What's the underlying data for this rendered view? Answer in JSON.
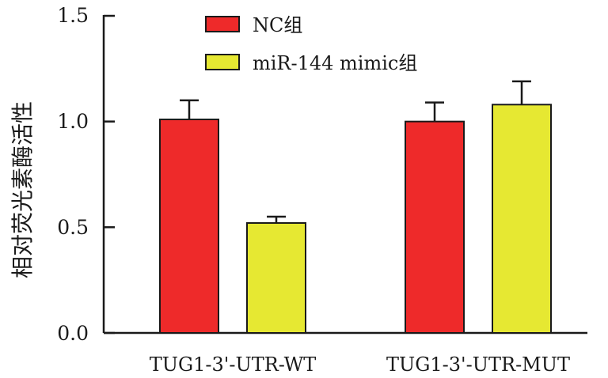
{
  "chart_data": {
    "type": "bar",
    "title": "",
    "xlabel": "",
    "ylabel": "相对荧光素酶活性",
    "ylim": [
      0,
      1.5
    ],
    "yticks": [
      "0.0",
      "0.5",
      "1.0",
      "1.5"
    ],
    "categories": [
      "TUG1-3'-UTR-WT",
      "TUG1-3'-UTR-MUT"
    ],
    "series": [
      {
        "name": "NC组",
        "color": "#ee2a2a",
        "values": [
          1.01,
          1.0
        ],
        "errors": [
          0.09,
          0.09
        ]
      },
      {
        "name": "miR-144 mimic组",
        "color": "#e6e832",
        "values": [
          0.52,
          1.08
        ],
        "errors": [
          0.03,
          0.11
        ]
      }
    ],
    "legend_position": "top-center",
    "grid": false
  }
}
